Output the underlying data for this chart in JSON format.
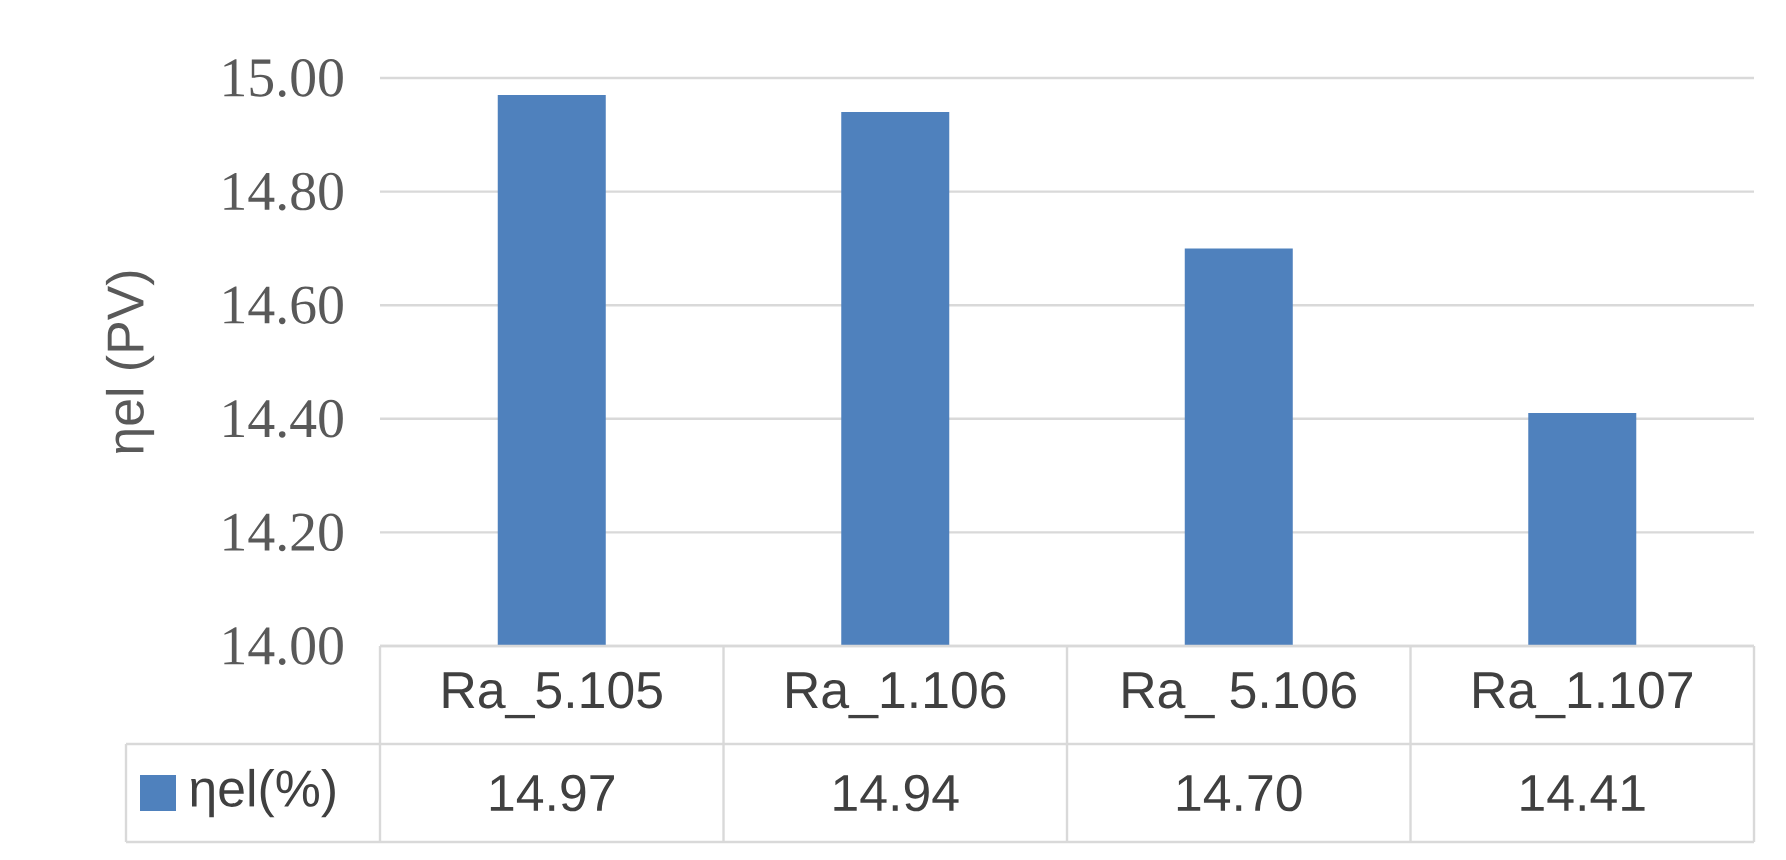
{
  "chart_data": {
    "type": "bar",
    "ylabel": "ηel (PV)",
    "categories": [
      "Ra_5.105",
      "Ra_1.106",
      "Ra_ 5.106",
      "Ra_1.107"
    ],
    "series": [
      {
        "name": "ηel(%)",
        "color": "#4f81bd",
        "values": [
          14.97,
          14.94,
          14.7,
          14.41
        ],
        "value_labels": [
          "14.97",
          "14.94",
          "14.70",
          "14.41"
        ]
      }
    ],
    "ylim": [
      14,
      15
    ],
    "yticks": [
      {
        "value": 14,
        "label": "14.00"
      },
      {
        "value": 14.2,
        "label": "14.20"
      },
      {
        "value": 14.4,
        "label": "14.40"
      },
      {
        "value": 14.6,
        "label": "14.60"
      },
      {
        "value": 14.8,
        "label": "14.80"
      },
      {
        "value": 15,
        "label": "15.00"
      }
    ],
    "grid": "y",
    "legend": "bottom"
  }
}
